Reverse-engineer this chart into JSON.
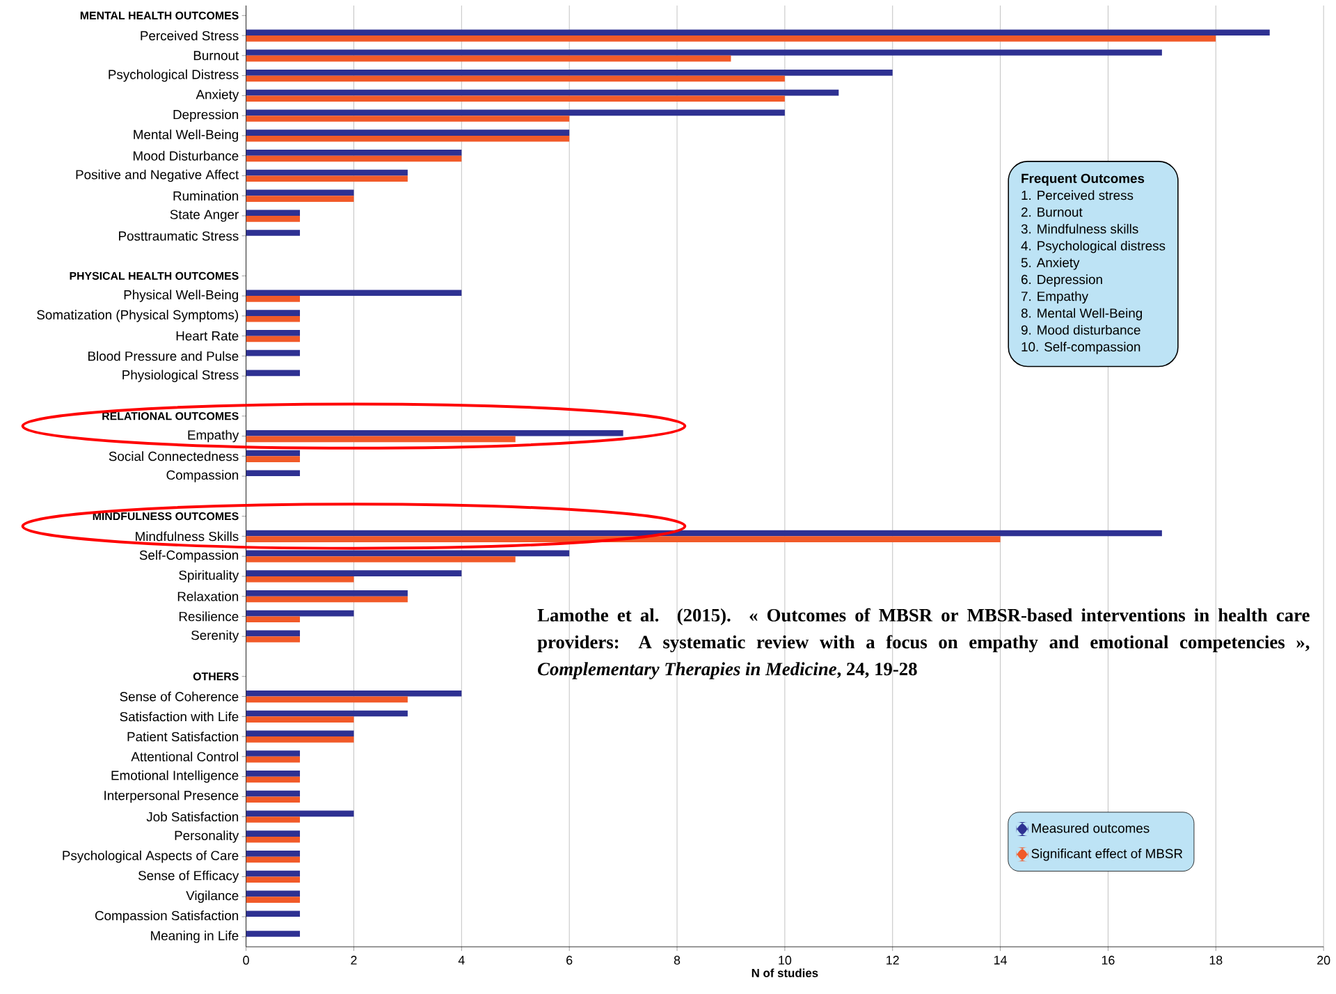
{
  "chart_data": {
    "type": "bar",
    "orientation": "horizontal",
    "categories": [
      "MENTAL HEALTH OUTCOMES",
      "Perceived Stress",
      "Burnout",
      "Psychological Distress",
      "Anxiety",
      "Depression",
      "Mental Well-Being",
      "Mood Disturbance",
      "Positive and Negative Affect",
      "Rumination",
      "State Anger",
      "Posttraumatic Stress",
      null,
      "PHYSICAL HEALTH OUTCOMES",
      "Physical Well-Being",
      "Somatization (Physical Symptoms)",
      "Heart Rate",
      "Blood Pressure and Pulse",
      "Physiological Stress",
      null,
      "RELATIONAL OUTCOMES",
      "Empathy",
      "Social Connectedness",
      "Compassion",
      null,
      "MINDFULNESS OUTCOMES",
      "Mindfulness Skills",
      "Self-Compassion",
      "Spirituality",
      "Relaxation",
      "Resilience",
      "Serenity",
      null,
      "OTHERS",
      "Sense of Coherence",
      "Satisfaction with Life",
      "Patient Satisfaction",
      "Attentional Control",
      "Emotional Intelligence",
      "Interpersonal Presence",
      "Job Satisfaction",
      "Personality",
      "Psychological Aspects of Care",
      "Sense of Efficacy",
      "Vigilance",
      "Compassion Satisfaction",
      "Meaning in Life"
    ],
    "series": [
      {
        "name": "Measured outcomes",
        "color": "#2e3192",
        "values": [
          null,
          19,
          17,
          12,
          11,
          10,
          6,
          4,
          3,
          2,
          1,
          1,
          null,
          null,
          4,
          1,
          1,
          1,
          1,
          null,
          null,
          7,
          1,
          1,
          null,
          null,
          17,
          6,
          4,
          3,
          2,
          1,
          null,
          null,
          4,
          3,
          2,
          1,
          1,
          1,
          2,
          1,
          1,
          1,
          1,
          1,
          1
        ]
      },
      {
        "name": "Significant effect of MBSR",
        "color": "#f15a29",
        "values": [
          null,
          18,
          9,
          10,
          10,
          6,
          6,
          4,
          3,
          2,
          1,
          null,
          null,
          null,
          1,
          1,
          1,
          null,
          null,
          null,
          null,
          5,
          1,
          null,
          null,
          null,
          14,
          5,
          2,
          3,
          1,
          1,
          null,
          null,
          3,
          2,
          2,
          1,
          1,
          1,
          1,
          1,
          1,
          1,
          1,
          null,
          null
        ]
      }
    ],
    "xlabel": "N of studies",
    "xlim": [
      0,
      20
    ],
    "xticks": [
      0,
      2,
      4,
      6,
      8,
      10,
      12,
      14,
      16,
      18,
      20
    ],
    "grid": "x",
    "legend": "bottom right",
    "annotations": [
      "Frequent Outcomes",
      "1. Perceived stress",
      "2. Burnout",
      "3. Mindfulness skills",
      "4. Psychological distress",
      "5. Anxiety",
      "6. Depression",
      "7. Empathy",
      "8. Mental Well-Being",
      "9. Mood disturbance",
      "10. Self-compassion",
      "Lamothe et al. (2015). « Outcomes of MBSR or MBSR-based interventions in health care providers: A systematic review with a focus on empathy and emotional competencies », *Complementary Therapies in Medicine*, 24, 19-28"
    ]
  }
}
